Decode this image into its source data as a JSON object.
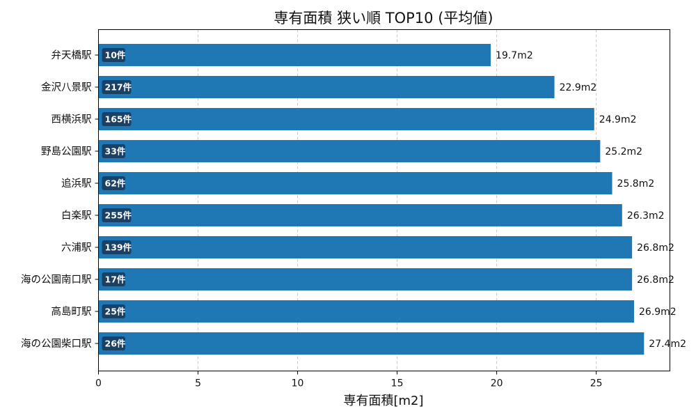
{
  "chart_data": {
    "type": "bar",
    "orientation": "horizontal",
    "title": "専有面積 狭い順 TOP10 (平均値)",
    "xlabel": "専有面積[m2]",
    "ylabel": "",
    "xlim": [
      0,
      28.7
    ],
    "xticks": [
      0,
      5,
      10,
      15,
      20,
      25
    ],
    "grid": "x-dashed",
    "bar_color": "#1f77b4",
    "badge_color": "#1a3a5c",
    "value_suffix": "m2",
    "categories": [
      "弁天橋駅",
      "金沢八景駅",
      "西横浜駅",
      "野島公園駅",
      "追浜駅",
      "白楽駅",
      "六浦駅",
      "海の公園南口駅",
      "高島町駅",
      "海の公園柴口駅"
    ],
    "values": [
      19.7,
      22.9,
      24.9,
      25.2,
      25.8,
      26.3,
      26.8,
      26.8,
      26.9,
      27.4
    ],
    "value_labels": [
      "19.7m2",
      "22.9m2",
      "24.9m2",
      "25.2m2",
      "25.8m2",
      "26.3m2",
      "26.8m2",
      "26.8m2",
      "26.9m2",
      "27.4m2"
    ],
    "counts": [
      "10件",
      "217件",
      "165件",
      "33件",
      "62件",
      "255件",
      "139件",
      "17件",
      "25件",
      "26件"
    ]
  }
}
